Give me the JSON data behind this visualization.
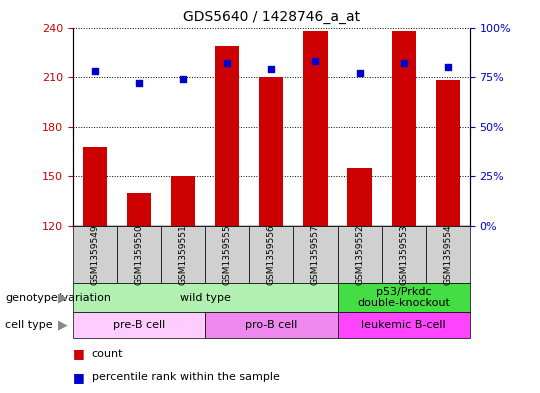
{
  "title": "GDS5640 / 1428746_a_at",
  "samples": [
    "GSM1359549",
    "GSM1359550",
    "GSM1359551",
    "GSM1359555",
    "GSM1359556",
    "GSM1359557",
    "GSM1359552",
    "GSM1359553",
    "GSM1359554"
  ],
  "counts": [
    168,
    140,
    150,
    229,
    210,
    238,
    155,
    238,
    208
  ],
  "percentile_ranks": [
    78,
    72,
    74,
    82,
    79,
    83,
    77,
    82,
    80
  ],
  "ylim_left": [
    120,
    240
  ],
  "ylim_right": [
    0,
    100
  ],
  "yticks_left": [
    120,
    150,
    180,
    210,
    240
  ],
  "yticks_right": [
    0,
    25,
    50,
    75,
    100
  ],
  "bar_color": "#cc0000",
  "dot_color": "#0000cc",
  "bar_bottom": 120,
  "genotype_groups": [
    {
      "label": "wild type",
      "span": [
        0,
        6
      ],
      "color": "#b0f0b0"
    },
    {
      "label": "p53/Prkdc\ndouble-knockout",
      "span": [
        6,
        9
      ],
      "color": "#44dd44"
    }
  ],
  "cell_type_groups": [
    {
      "label": "pre-B cell",
      "span": [
        0,
        3
      ],
      "color": "#ffccff"
    },
    {
      "label": "pro-B cell",
      "span": [
        3,
        6
      ],
      "color": "#ee88ee"
    },
    {
      "label": "leukemic B-cell",
      "span": [
        6,
        9
      ],
      "color": "#ff44ff"
    }
  ],
  "sample_box_color": "#d0d0d0",
  "grid_color": "#000000",
  "bg_color": "#ffffff",
  "left_tick_color": "#cc0000",
  "right_tick_color": "#0000cc",
  "legend_items": [
    {
      "label": "count",
      "color": "#cc0000"
    },
    {
      "label": "percentile rank within the sample",
      "color": "#0000cc"
    }
  ],
  "genotype_label": "genotype/variation",
  "cell_type_label": "cell type"
}
